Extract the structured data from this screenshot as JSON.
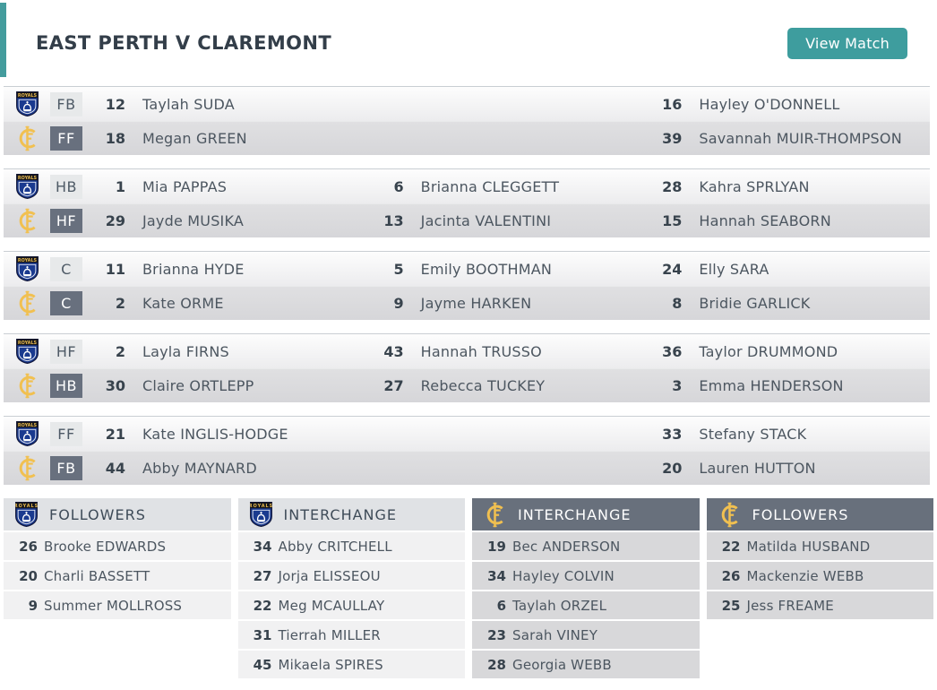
{
  "header": {
    "title": "EAST PERTH V CLAREMONT",
    "view_match_label": "View Match"
  },
  "icons": {
    "east_perth_logo": "east-perth-royals-shield",
    "east_perth_shield_text": "ROYALS",
    "claremont_logo": "claremont-cf-gold-monogram"
  },
  "colors": {
    "accent_teal": "#3E9D9E",
    "east_perth_navy": "#1A3A8F",
    "claremont_gold": "#F1C050",
    "dark_slate_badge": "#68707E",
    "light_badge": "#E7E9EA",
    "text_dark": "#333E49"
  },
  "lines": [
    {
      "ep": {
        "pos": "FB",
        "players": [
          {
            "num": "12",
            "name": "Taylah SUDA"
          },
          {
            "num": "",
            "name": ""
          },
          {
            "num": "16",
            "name": "Hayley O'DONNELL"
          }
        ]
      },
      "cl": {
        "pos": "FF",
        "players": [
          {
            "num": "18",
            "name": "Megan GREEN"
          },
          {
            "num": "",
            "name": ""
          },
          {
            "num": "39",
            "name": "Savannah MUIR-THOMPSON"
          }
        ]
      }
    },
    {
      "ep": {
        "pos": "HB",
        "players": [
          {
            "num": "1",
            "name": "Mia PAPPAS"
          },
          {
            "num": "6",
            "name": "Brianna CLEGGETT"
          },
          {
            "num": "28",
            "name": "Kahra SPRLYAN"
          }
        ]
      },
      "cl": {
        "pos": "HF",
        "players": [
          {
            "num": "29",
            "name": "Jayde MUSIKA"
          },
          {
            "num": "13",
            "name": "Jacinta VALENTINI"
          },
          {
            "num": "15",
            "name": "Hannah SEABORN"
          }
        ]
      }
    },
    {
      "ep": {
        "pos": "C",
        "players": [
          {
            "num": "11",
            "name": "Brianna HYDE"
          },
          {
            "num": "5",
            "name": "Emily BOOTHMAN"
          },
          {
            "num": "24",
            "name": "Elly SARA"
          }
        ]
      },
      "cl": {
        "pos": "C",
        "players": [
          {
            "num": "2",
            "name": "Kate ORME"
          },
          {
            "num": "9",
            "name": "Jayme HARKEN"
          },
          {
            "num": "8",
            "name": "Bridie GARLICK"
          }
        ]
      }
    },
    {
      "ep": {
        "pos": "HF",
        "players": [
          {
            "num": "2",
            "name": "Layla FIRNS"
          },
          {
            "num": "43",
            "name": "Hannah TRUSSO"
          },
          {
            "num": "36",
            "name": "Taylor DRUMMOND"
          }
        ]
      },
      "cl": {
        "pos": "HB",
        "players": [
          {
            "num": "30",
            "name": "Claire ORTLEPP"
          },
          {
            "num": "27",
            "name": "Rebecca TUCKEY"
          },
          {
            "num": "3",
            "name": "Emma HENDERSON"
          }
        ]
      }
    },
    {
      "ep": {
        "pos": "FF",
        "players": [
          {
            "num": "21",
            "name": "Kate INGLIS-HODGE"
          },
          {
            "num": "",
            "name": ""
          },
          {
            "num": "33",
            "name": "Stefany STACK"
          }
        ]
      },
      "cl": {
        "pos": "FB",
        "players": [
          {
            "num": "44",
            "name": "Abby MAYNARD"
          },
          {
            "num": "",
            "name": ""
          },
          {
            "num": "20",
            "name": "Lauren HUTTON"
          }
        ]
      }
    }
  ],
  "panels": [
    {
      "team": "east-perth",
      "title": "FOLLOWERS",
      "players": [
        {
          "num": "26",
          "name": "Brooke EDWARDS"
        },
        {
          "num": "20",
          "name": "Charli BASSETT"
        },
        {
          "num": "9",
          "name": "Summer MOLLROSS"
        }
      ]
    },
    {
      "team": "east-perth",
      "title": "INTERCHANGE",
      "players": [
        {
          "num": "34",
          "name": "Abby CRITCHELL"
        },
        {
          "num": "27",
          "name": "Jorja ELISSEOU"
        },
        {
          "num": "22",
          "name": "Meg MCAULLAY"
        },
        {
          "num": "31",
          "name": "Tierrah MILLER"
        },
        {
          "num": "45",
          "name": "Mikaela SPIRES"
        }
      ]
    },
    {
      "team": "claremont",
      "title": "INTERCHANGE",
      "players": [
        {
          "num": "19",
          "name": "Bec ANDERSON"
        },
        {
          "num": "34",
          "name": "Hayley COLVIN"
        },
        {
          "num": "6",
          "name": "Taylah ORZEL"
        },
        {
          "num": "23",
          "name": "Sarah VINEY"
        },
        {
          "num": "28",
          "name": "Georgia WEBB"
        }
      ]
    },
    {
      "team": "claremont",
      "title": "FOLLOWERS",
      "players": [
        {
          "num": "22",
          "name": "Matilda HUSBAND"
        },
        {
          "num": "26",
          "name": "Mackenzie WEBB"
        },
        {
          "num": "25",
          "name": "Jess FREAME"
        }
      ]
    }
  ]
}
